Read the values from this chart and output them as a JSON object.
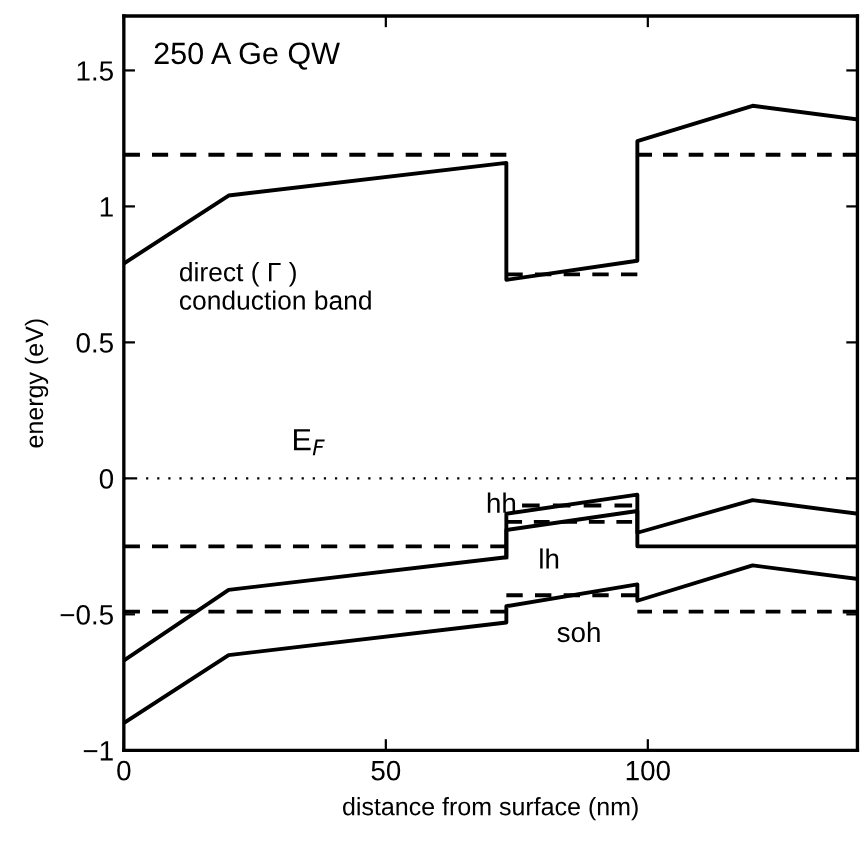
{
  "chart_data": {
    "type": "line",
    "xlabel": "distance from surface (nm)",
    "ylabel": "energy (eV)",
    "xlim": [
      0,
      140
    ],
    "ylim": [
      -1,
      1.7
    ],
    "xticks": [
      0,
      50,
      100
    ],
    "yticks": [
      {
        "value": -1,
        "label": "−1"
      },
      {
        "value": -0.5,
        "label": "−0.5"
      },
      0,
      0.5,
      1,
      1.5
    ],
    "grid": false,
    "legend": false,
    "marker": "none",
    "series": [
      {
        "color": "#000000",
        "line_style": "solid",
        "x": [
          0,
          20,
          73,
          73,
          98,
          98,
          120,
          140
        ],
        "values": [
          0.79,
          1.04,
          1.16,
          0.73,
          0.8,
          1.24,
          1.37,
          1.32
        ]
      },
      {
        "color": "#000000",
        "line_style": "solid",
        "x": [
          0,
          20,
          73,
          73,
          98,
          98,
          120,
          140
        ],
        "values": [
          -0.67,
          -0.41,
          -0.29,
          -0.13,
          -0.06,
          -0.2,
          -0.08,
          -0.13
        ]
      },
      {
        "color": "#000000",
        "line_style": "solid",
        "x": [
          73,
          73,
          98,
          98,
          140
        ],
        "values": [
          -0.29,
          -0.19,
          -0.12,
          -0.25,
          -0.25
        ]
      },
      {
        "color": "#000000",
        "line_style": "solid",
        "x": [
          0,
          20,
          73,
          73,
          98,
          98,
          120,
          140
        ],
        "values": [
          -0.9,
          -0.65,
          -0.53,
          -0.47,
          -0.39,
          -0.45,
          -0.32,
          -0.37
        ]
      },
      {
        "color": "#000000",
        "line_style": "dashed",
        "x": [
          0,
          73
        ],
        "values": [
          1.19,
          1.19
        ]
      },
      {
        "color": "#000000",
        "line_style": "dashed",
        "x": [
          98,
          140
        ],
        "values": [
          1.19,
          1.19
        ]
      },
      {
        "color": "#000000",
        "line_style": "dashed",
        "x": [
          73,
          98
        ],
        "values": [
          0.75,
          0.75
        ]
      },
      {
        "color": "#000000",
        "line_style": "dashed",
        "x": [
          0,
          73
        ],
        "values": [
          -0.25,
          -0.25
        ]
      },
      {
        "color": "#000000",
        "line_style": "dashed",
        "x": [
          76,
          97
        ],
        "values": [
          -0.1,
          -0.1
        ]
      },
      {
        "color": "#000000",
        "line_style": "dashed",
        "x": [
          73,
          97
        ],
        "values": [
          -0.16,
          -0.16
        ]
      },
      {
        "color": "#000000",
        "line_style": "dashed",
        "x": [
          0,
          73
        ],
        "values": [
          -0.49,
          -0.49
        ]
      },
      {
        "color": "#000000",
        "line_style": "dashed",
        "x": [
          98,
          140
        ],
        "values": [
          -0.49,
          -0.49
        ]
      },
      {
        "color": "#000000",
        "line_style": "dashed",
        "x": [
          73,
          98
        ],
        "values": [
          -0.43,
          -0.43
        ]
      }
    ],
    "ref_lines": [
      {
        "axis": "y",
        "value": 0,
        "label": "E$_{F}$",
        "color": "#000000",
        "line_style": "dotted"
      }
    ],
    "annotations": [
      "250 A Ge QW",
      "direct ( Γ )\nconduction band",
      {
        "text": "hh",
        "x": 76,
        "y": -0.1
      },
      "lh",
      "soh"
    ]
  }
}
